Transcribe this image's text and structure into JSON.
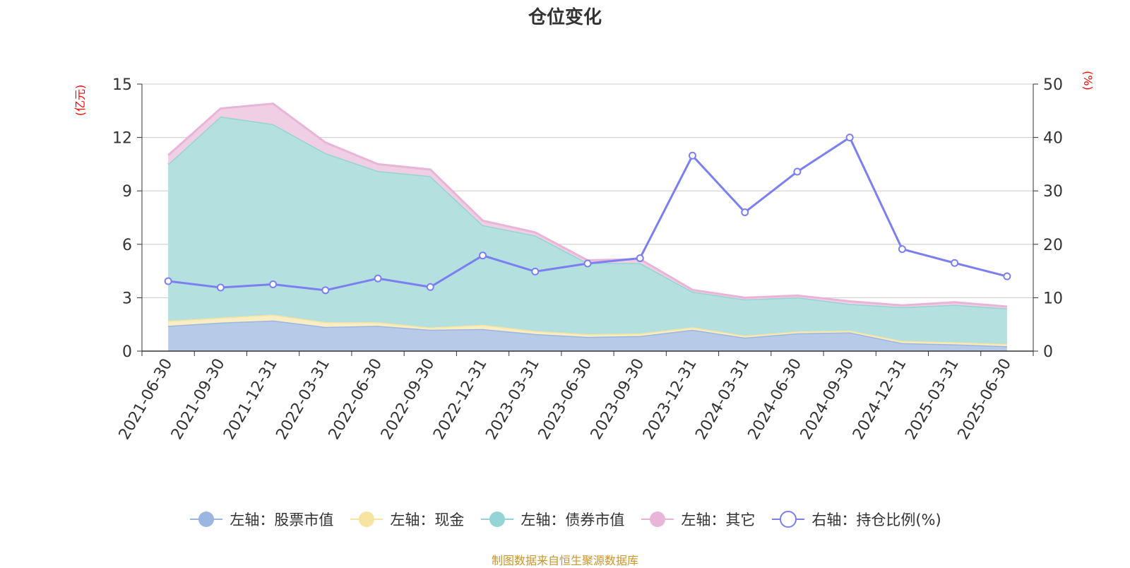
{
  "title": "仓位变化",
  "source_note": "制图数据来自恒生聚源数据库",
  "colors": {
    "stock": "#9bb6e0",
    "stock_fill": "#b7cbe9",
    "cash": "#f7e4a0",
    "cash_fill": "#f8edc4",
    "bond": "#95d4d4",
    "bond_fill": "#b4e0e0",
    "other": "#e8b4d8",
    "other_fill": "#f0cfe4",
    "ratio": "#7b7ff0",
    "axis_unit": "#ff0000",
    "grid": "#cccccc",
    "axis": "#333333"
  },
  "chart_data": {
    "type": "area",
    "categories": [
      "2021-06-30",
      "2021-09-30",
      "2021-12-31",
      "2022-03-31",
      "2022-06-30",
      "2022-09-30",
      "2022-12-31",
      "2023-03-31",
      "2023-06-30",
      "2023-09-30",
      "2023-12-31",
      "2024-03-31",
      "2024-06-30",
      "2024-09-30",
      "2024-12-31",
      "2025-03-31",
      "2025-06-30"
    ],
    "left_axis": {
      "unit": "(亿元)",
      "ylim": [
        0,
        15
      ],
      "ticks": [
        0,
        3,
        6,
        9,
        12,
        15
      ]
    },
    "right_axis": {
      "unit": "(%)",
      "ylim": [
        0,
        50
      ],
      "ticks": [
        0,
        10,
        20,
        30,
        40,
        50
      ]
    },
    "stacked": true,
    "grid": true,
    "legend_position": "bottom",
    "series": [
      {
        "name": "左轴：股票市值",
        "axis": "left",
        "type": "area",
        "color_key": "stock",
        "values": [
          1.42,
          1.6,
          1.72,
          1.36,
          1.42,
          1.2,
          1.24,
          0.96,
          0.8,
          0.85,
          1.2,
          0.76,
          1.0,
          1.05,
          0.45,
          0.38,
          0.28
        ]
      },
      {
        "name": "左轴：现金",
        "axis": "left",
        "type": "area",
        "color_key": "cash",
        "values": [
          0.28,
          0.28,
          0.33,
          0.26,
          0.2,
          0.13,
          0.24,
          0.17,
          0.15,
          0.14,
          0.14,
          0.11,
          0.1,
          0.1,
          0.12,
          0.12,
          0.12
        ]
      },
      {
        "name": "左轴：债券市值",
        "axis": "left",
        "type": "area",
        "color_key": "bond",
        "values": [
          8.8,
          11.3,
          10.7,
          9.5,
          8.5,
          8.5,
          5.6,
          5.37,
          4.0,
          3.96,
          2.0,
          2.03,
          1.92,
          1.5,
          1.9,
          2.1,
          2.0
        ]
      },
      {
        "name": "左轴：其它",
        "axis": "left",
        "type": "area",
        "color_key": "other",
        "values": [
          0.5,
          0.45,
          1.15,
          0.6,
          0.38,
          0.37,
          0.25,
          0.17,
          0.15,
          0.22,
          0.1,
          0.1,
          0.1,
          0.15,
          0.1,
          0.15,
          0.1
        ]
      },
      {
        "name": "右轴：持仓比例(%)",
        "axis": "right",
        "type": "line",
        "color_key": "ratio",
        "values": [
          13.1,
          11.9,
          12.5,
          11.4,
          13.6,
          12.0,
          17.9,
          14.9,
          16.4,
          17.4,
          36.6,
          26.0,
          33.6,
          40.0,
          19.1,
          16.5,
          14.0
        ]
      }
    ]
  }
}
